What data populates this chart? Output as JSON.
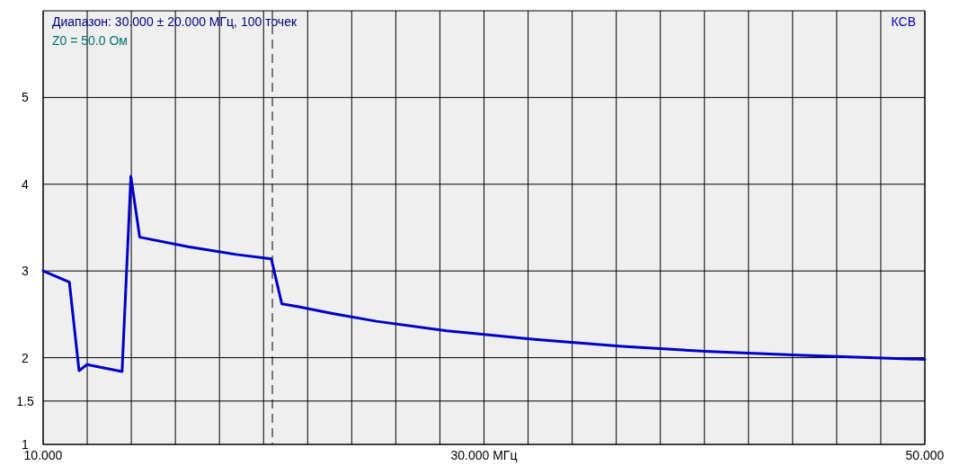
{
  "chart_data": {
    "type": "line",
    "title": "Диапазон: 30.000 ± 20.000 МГц, 100 точек",
    "subtitle": "Z0 = 50.0 Ом",
    "ylabel": "КСВ",
    "x": [
      10,
      11.19,
      11.63,
      11.99,
      13.58,
      13.98,
      14.38,
      16.57,
      18.76,
      20.35,
      20.83,
      21.54,
      23.13,
      25.12,
      28.31,
      32.29,
      36.27,
      40.25,
      44.23,
      50
    ],
    "series": [
      {
        "color": "#0000c8",
        "values": [
          3.0,
          2.87,
          1.85,
          1.92,
          1.84,
          4.09,
          3.39,
          3.28,
          3.19,
          3.14,
          2.62,
          2.59,
          2.51,
          2.42,
          2.31,
          2.21,
          2.13,
          2.07,
          2.03,
          1.98
        ]
      }
    ],
    "xlim": [
      10,
      50
    ],
    "xticks": [
      {
        "value": 10,
        "label": "10.000"
      },
      {
        "value": 12,
        "label": null
      },
      {
        "value": 14,
        "label": null
      },
      {
        "value": 16,
        "label": null
      },
      {
        "value": 18,
        "label": null
      },
      {
        "value": 20,
        "label": null
      },
      {
        "value": 22,
        "label": null
      },
      {
        "value": 24,
        "label": null
      },
      {
        "value": 26,
        "label": null
      },
      {
        "value": 28,
        "label": null
      },
      {
        "value": 30,
        "label": "30.000 МГц"
      },
      {
        "value": 32,
        "label": null
      },
      {
        "value": 34,
        "label": null
      },
      {
        "value": 36,
        "label": null
      },
      {
        "value": 38,
        "label": null
      },
      {
        "value": 40,
        "label": null
      },
      {
        "value": 42,
        "label": null
      },
      {
        "value": 44,
        "label": null
      },
      {
        "value": 46,
        "label": null
      },
      {
        "value": 48,
        "label": null
      },
      {
        "value": 50,
        "label": "50.000"
      }
    ],
    "ylim": [
      1,
      6
    ],
    "yticks": [
      1,
      1.5,
      2,
      3,
      4,
      5
    ],
    "grid": true,
    "line_style": "solid",
    "marker": "none",
    "ref_lines": [
      {
        "axis": "x",
        "value": 20.4,
        "label": null,
        "color": "#000000",
        "line_style": "dashed"
      }
    ]
  }
}
